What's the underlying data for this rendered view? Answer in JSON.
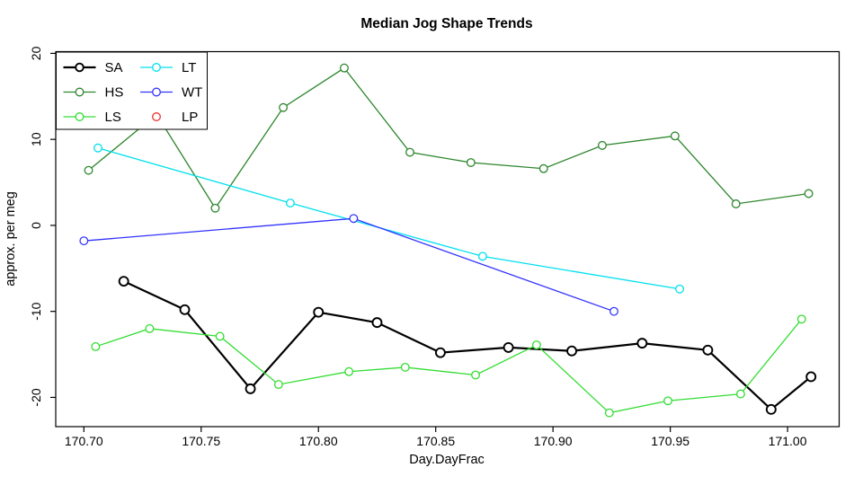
{
  "title": "Median Jog Shape Trends",
  "chart_data": {
    "type": "line",
    "title": "Median Jog Shape Trends",
    "xlabel": "Day.DayFrac",
    "ylabel": "approx. per meg",
    "xlim": [
      170.688,
      171.022
    ],
    "ylim": [
      -23.4,
      20.2
    ],
    "grid": false,
    "legend_position": "top-left",
    "xticks": [
      170.7,
      170.75,
      170.8,
      170.85,
      170.9,
      170.95,
      171.0
    ],
    "xtick_labels": [
      "170.70",
      "170.75",
      "170.80",
      "170.85",
      "170.90",
      "170.95",
      "171.00"
    ],
    "yticks": [
      -20,
      -10,
      0,
      10,
      20
    ],
    "ytick_labels": [
      "-20",
      "-10",
      "0",
      "10",
      "20"
    ],
    "axis_color": "#000000",
    "series": [
      {
        "name": "SA",
        "color": "#000000",
        "line_width": 2.2,
        "marker": "open-circle",
        "marker_r": 5,
        "legend_line": true,
        "x": [
          170.717,
          170.743,
          170.771,
          170.8,
          170.825,
          170.852,
          170.881,
          170.908,
          170.938,
          170.966,
          170.993,
          171.01
        ],
        "y": [
          -6.5,
          -9.8,
          -19.0,
          -10.1,
          -11.3,
          -14.8,
          -14.2,
          -14.6,
          -13.7,
          -14.5,
          -21.4,
          -17.6
        ]
      },
      {
        "name": "HS",
        "color": "#2d862d",
        "line_width": 1.3,
        "marker": "open-circle",
        "marker_r": 4.3,
        "legend_line": true,
        "x": [
          170.702,
          170.731,
          170.756,
          170.785,
          170.811,
          170.839,
          170.865,
          170.896,
          170.921,
          170.952,
          170.978,
          171.009
        ],
        "y": [
          6.4,
          12.9,
          2.0,
          13.7,
          18.3,
          8.5,
          7.3,
          6.6,
          9.3,
          10.4,
          2.5,
          3.7
        ]
      },
      {
        "name": "LS",
        "color": "#33dd33",
        "line_width": 1.3,
        "marker": "open-circle",
        "marker_r": 4.3,
        "legend_line": true,
        "x": [
          170.705,
          170.728,
          170.758,
          170.783,
          170.813,
          170.837,
          170.867,
          170.893,
          170.924,
          170.949,
          170.98,
          171.006
        ],
        "y": [
          -14.1,
          -12.0,
          -12.9,
          -18.5,
          -17.0,
          -16.5,
          -17.4,
          -13.9,
          -21.8,
          -20.4,
          -19.6,
          -10.9
        ]
      },
      {
        "name": "LT",
        "color": "#00e0ee",
        "line_width": 1.3,
        "marker": "open-circle",
        "marker_r": 4.3,
        "legend_line": true,
        "x": [
          170.706,
          170.788,
          170.87,
          170.954
        ],
        "y": [
          9.0,
          2.6,
          -3.6,
          -7.4
        ]
      },
      {
        "name": "WT",
        "color": "#3333ff",
        "line_width": 1.3,
        "marker": "open-circle",
        "marker_r": 4.3,
        "legend_line": true,
        "x": [
          170.7,
          170.815,
          170.926
        ],
        "y": [
          -1.8,
          0.8,
          -10.0
        ]
      },
      {
        "name": "LP",
        "color": "#ee3333",
        "line_width": 1.3,
        "marker": "open-circle",
        "marker_r": 4.2,
        "legend_line": false,
        "x": [],
        "y": []
      }
    ]
  }
}
